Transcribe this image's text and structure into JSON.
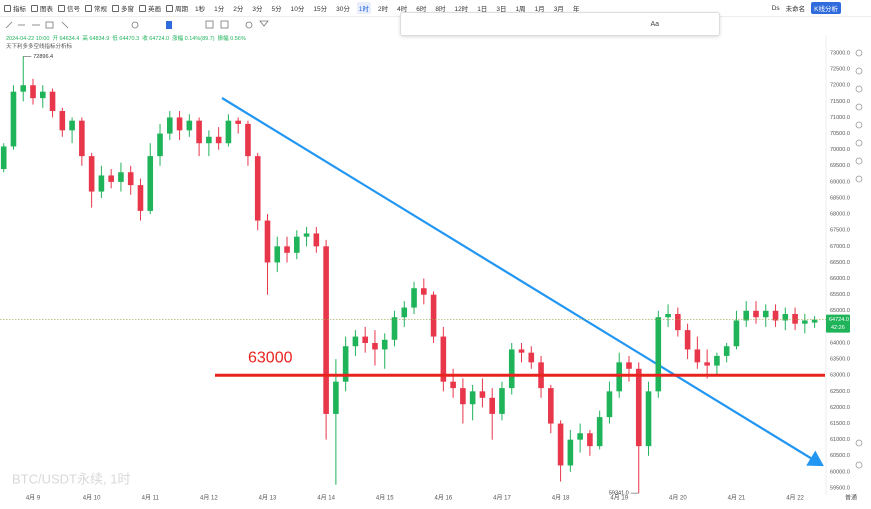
{
  "toolbar": {
    "menu": [
      "指标",
      "图表",
      "信号",
      "常规",
      "多窗",
      "英画",
      "周期"
    ],
    "periods": [
      "1秒",
      "1分",
      "2分",
      "3分",
      "5分",
      "10分",
      "15分",
      "30分",
      "1时",
      "2时",
      "4时",
      "6时",
      "8时",
      "12时",
      "1日",
      "3日",
      "1周",
      "1月",
      "3月",
      "年"
    ],
    "active_period": "1时",
    "right": [
      "Ds",
      "未命名",
      "K线分析"
    ]
  },
  "drawing_toolbar": {
    "text": "Aa"
  },
  "chart_data": {
    "type": "candlestick",
    "title": "BTC/USDT永续, 1时",
    "info": [
      "2024-04-22 10:00",
      "开 64634.4",
      "高 64834.9",
      "低 64470.3",
      "收 64724.0",
      "涨幅 0.14%(89.7)",
      "振幅 0.56%"
    ],
    "indicator": "天下利多多空线指标分析标",
    "up_color": "#1fb35a",
    "down_color": "#e8364a",
    "open": [
      69400,
      70100,
      71800,
      72000,
      71600,
      71800,
      71200,
      70600,
      70900,
      69800,
      68700,
      69200,
      69000,
      69300,
      68900,
      68100,
      69800,
      70500,
      71000,
      70600,
      70900,
      70200,
      70400,
      70200,
      70900,
      70800,
      69800,
      67800,
      66500,
      67000,
      66800,
      67300,
      67400,
      67000,
      61800,
      62800,
      63900,
      64200,
      64000,
      63800,
      64100,
      64800,
      65100,
      65700,
      65500,
      64200,
      62800,
      62600,
      62100,
      62500,
      62300,
      61800,
      62600,
      63800,
      63700,
      63400,
      62600,
      61500,
      60200,
      61000,
      61200,
      60800,
      61700,
      62500,
      63400,
      63200,
      60800,
      62500,
      64800,
      64900,
      64400,
      63800,
      63400,
      63300,
      63600,
      63900,
      64700,
      65000,
      64800,
      65000,
      64700,
      64900,
      64600,
      64634.4
    ],
    "high": [
      70200,
      72000,
      72896.4,
      72200,
      72000,
      71900,
      71300,
      71000,
      71000,
      69900,
      69500,
      69400,
      69600,
      69500,
      69100,
      70200,
      70800,
      71200,
      71200,
      71100,
      71000,
      70600,
      70700,
      71100,
      71000,
      70900,
      69900,
      68000,
      67300,
      67300,
      67500,
      67600,
      67600,
      67200,
      63500,
      64200,
      64400,
      64500,
      64400,
      64300,
      65000,
      65300,
      65900,
      66000,
      65600,
      64500,
      63200,
      62900,
      62700,
      62900,
      62600,
      62800,
      64000,
      64000,
      63900,
      63600,
      62700,
      61600,
      61300,
      61500,
      61300,
      61900,
      62800,
      63700,
      63600,
      63400,
      62800,
      65000,
      65200,
      65100,
      64600,
      64200,
      63800,
      63700,
      64000,
      65000,
      65300,
      65300,
      65200,
      65200,
      65100,
      65100,
      64900,
      64834.9
    ],
    "low": [
      69300,
      70000,
      71500,
      71400,
      71300,
      71000,
      70400,
      70200,
      69500,
      68200,
      68500,
      68800,
      68700,
      68600,
      67800,
      68000,
      69500,
      70300,
      70300,
      70400,
      69800,
      69800,
      70000,
      70100,
      70500,
      69500,
      67500,
      65500,
      66200,
      66500,
      66600,
      67000,
      66800,
      61000,
      59600,
      62500,
      63600,
      63700,
      63300,
      63200,
      63900,
      64500,
      64900,
      65200,
      64000,
      62500,
      62300,
      61500,
      61600,
      62000,
      61000,
      61600,
      62400,
      63400,
      63200,
      62300,
      61200,
      59700,
      60000,
      60600,
      60500,
      60700,
      61500,
      62300,
      62800,
      59341,
      60500,
      62300,
      64500,
      64200,
      63500,
      63200,
      62900,
      63000,
      63400,
      63800,
      64500,
      64600,
      64500,
      64500,
      64400,
      64400,
      64300,
      64470.3
    ],
    "close": [
      70100,
      71800,
      72000,
      71600,
      71800,
      71200,
      70600,
      70900,
      69800,
      68700,
      69200,
      69000,
      69300,
      68900,
      68100,
      69800,
      70500,
      71000,
      70600,
      70900,
      70200,
      70400,
      70200,
      70900,
      70800,
      69800,
      67800,
      66500,
      67000,
      66800,
      67300,
      67400,
      67000,
      61800,
      62800,
      63900,
      64200,
      64000,
      63800,
      64100,
      64800,
      65100,
      65700,
      65500,
      64200,
      62800,
      62600,
      62100,
      62500,
      62300,
      61800,
      62600,
      63800,
      63700,
      63400,
      62600,
      61500,
      60200,
      61000,
      61200,
      60800,
      61700,
      62500,
      63400,
      63200,
      60800,
      62500,
      64800,
      64900,
      64400,
      63800,
      63400,
      63300,
      63600,
      63900,
      64700,
      65000,
      64800,
      65000,
      64700,
      64900,
      64600,
      64700,
      64724
    ],
    "x_labels": [
      "4月 9",
      "4月 10",
      "4月 11",
      "4月 12",
      "4月 13",
      "4月 14",
      "4月 15",
      "4月 16",
      "4月 17",
      "4月 18",
      "4月 19",
      "4月 20",
      "4月 21",
      "4月 22"
    ],
    "ylim": [
      59283,
      73559
    ],
    "yticks": [
      {
        "value": 73000,
        "label": "73000.0"
      },
      {
        "value": 72500,
        "label": "72500.0"
      },
      {
        "value": 72000,
        "label": "72000.0"
      },
      {
        "value": 71500,
        "label": "71500.0"
      },
      {
        "value": 71000,
        "label": "71000.0"
      },
      {
        "value": 70500,
        "label": "70500.0"
      },
      {
        "value": 70000,
        "label": "70000.0"
      },
      {
        "value": 69500,
        "label": "69500.0"
      },
      {
        "value": 69000,
        "label": "69000.0"
      },
      {
        "value": 68500,
        "label": "68500.0"
      },
      {
        "value": 68000,
        "label": "68000.0"
      },
      {
        "value": 67500,
        "label": "67500.0"
      },
      {
        "value": 67000,
        "label": "67000.0"
      },
      {
        "value": 66500,
        "label": "66500.0"
      },
      {
        "value": 66000,
        "label": "66000.0"
      },
      {
        "value": 65500,
        "label": "65500.0"
      },
      {
        "value": 65000,
        "label": "65000.0"
      },
      {
        "value": 64500,
        "label": "64500.0"
      },
      {
        "value": 64000,
        "label": "64000.0"
      },
      {
        "value": 63500,
        "label": "63500.0"
      },
      {
        "value": 63000,
        "label": "63000.0"
      },
      {
        "value": 62500,
        "label": "62500.0"
      },
      {
        "value": 62000,
        "label": "62000.0"
      },
      {
        "value": 61500,
        "label": "61500.0"
      },
      {
        "value": 61000,
        "label": "61000.0"
      },
      {
        "value": 60500,
        "label": "60500.0"
      },
      {
        "value": 60000,
        "label": "60000.0"
      },
      {
        "value": 59500,
        "label": "59500.0"
      }
    ],
    "grid": false,
    "extremes": [
      {
        "value": 72896.4,
        "label": "72896.4"
      },
      {
        "value": 59341,
        "label": "59341.0"
      }
    ],
    "hline": {
      "value": 63000,
      "color": "#e8231e"
    },
    "last_price": {
      "value": 64724,
      "label": "64724.0",
      "countdown": "42:26"
    },
    "footer": "普通"
  }
}
